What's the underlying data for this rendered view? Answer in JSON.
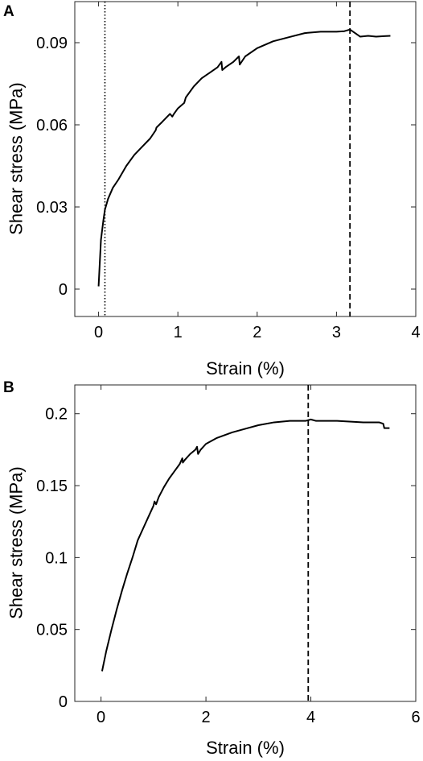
{
  "chart_data": [
    {
      "type": "line",
      "panel_label": "A",
      "xlabel": "Strain (%)",
      "ylabel": "Shear stress (MPa)",
      "xlim": [
        -0.3,
        4
      ],
      "ylim": [
        -0.01,
        0.105
      ],
      "xticks": [
        0,
        1,
        2,
        3,
        4
      ],
      "yticks": [
        0,
        0.03,
        0.06,
        0.09
      ],
      "xtick_labels": [
        "0",
        "1",
        "2",
        "3",
        "4"
      ],
      "ytick_labels": [
        "0",
        "0.03",
        "0.06",
        "0.09"
      ],
      "vlines": [
        {
          "x": 0.08,
          "style": "dotted"
        },
        {
          "x": 3.17,
          "style": "dashed"
        }
      ],
      "series": [
        {
          "x": [
            0,
            0.03,
            0.06,
            0.08,
            0.12,
            0.18,
            0.25,
            0.35,
            0.45,
            0.55,
            0.65,
            0.72,
            0.73,
            0.8,
            0.9,
            0.93,
            0.95,
            1.0,
            1.08,
            1.1,
            1.2,
            1.3,
            1.4,
            1.5,
            1.55,
            1.56,
            1.6,
            1.7,
            1.77,
            1.78,
            1.85,
            2.0,
            2.2,
            2.4,
            2.6,
            2.8,
            3.0,
            3.1,
            3.17,
            3.22,
            3.3,
            3.4,
            3.5,
            3.6,
            3.68
          ],
          "y": [
            0.001,
            0.018,
            0.025,
            0.029,
            0.033,
            0.037,
            0.04,
            0.045,
            0.049,
            0.052,
            0.055,
            0.058,
            0.059,
            0.061,
            0.064,
            0.063,
            0.064,
            0.066,
            0.068,
            0.07,
            0.074,
            0.077,
            0.079,
            0.081,
            0.083,
            0.08,
            0.081,
            0.083,
            0.085,
            0.082,
            0.085,
            0.088,
            0.0905,
            0.092,
            0.0935,
            0.094,
            0.094,
            0.0942,
            0.0948,
            0.0938,
            0.0922,
            0.0925,
            0.0922,
            0.0924,
            0.0925
          ]
        }
      ]
    },
    {
      "type": "line",
      "panel_label": "B",
      "xlabel": "Strain (%)",
      "ylabel": "Shear stress (MPa)",
      "xlim": [
        -0.5,
        6
      ],
      "ylim": [
        0,
        0.22
      ],
      "xticks": [
        0,
        2,
        4,
        6
      ],
      "yticks": [
        0,
        0.05,
        0.1,
        0.15,
        0.2
      ],
      "xtick_labels": [
        "0",
        "2",
        "4",
        "6"
      ],
      "ytick_labels": [
        "0",
        "0.05",
        "0.1",
        "0.15",
        "0.2"
      ],
      "vlines": [
        {
          "x": 3.95,
          "style": "dashed"
        }
      ],
      "series": [
        {
          "x": [
            0.02,
            0.1,
            0.2,
            0.3,
            0.4,
            0.5,
            0.6,
            0.7,
            0.8,
            0.9,
            1.0,
            1.02,
            1.05,
            1.1,
            1.2,
            1.3,
            1.4,
            1.5,
            1.55,
            1.56,
            1.6,
            1.7,
            1.8,
            1.83,
            1.85,
            1.9,
            2.0,
            2.2,
            2.5,
            2.8,
            3.0,
            3.3,
            3.6,
            3.9,
            4.0,
            4.1,
            4.5,
            5.0,
            5.3,
            5.38,
            5.4,
            5.5
          ],
          "y": [
            0.021,
            0.035,
            0.05,
            0.064,
            0.077,
            0.089,
            0.1,
            0.112,
            0.12,
            0.128,
            0.136,
            0.139,
            0.137,
            0.142,
            0.149,
            0.155,
            0.16,
            0.165,
            0.169,
            0.166,
            0.168,
            0.172,
            0.175,
            0.177,
            0.172,
            0.175,
            0.179,
            0.183,
            0.187,
            0.19,
            0.192,
            0.194,
            0.195,
            0.195,
            0.196,
            0.195,
            0.195,
            0.194,
            0.194,
            0.193,
            0.19,
            0.19
          ]
        }
      ]
    }
  ]
}
